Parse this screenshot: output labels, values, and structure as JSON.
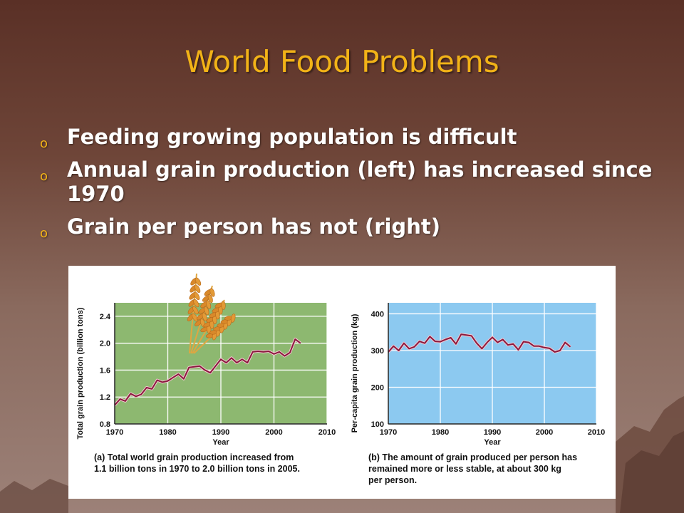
{
  "slide": {
    "title": "World Food Problems",
    "bullet_marker": "o",
    "bullets": [
      "Feeding growing population is difficult",
      "Annual grain production (left) has increased since 1970",
      "Grain per person has not (right)"
    ]
  },
  "colors": {
    "title": "#f2b317",
    "panel_a_bg": "#8db870",
    "panel_b_bg": "#8cc9f0",
    "line": "#8b1a3e"
  },
  "icons": [
    "wheat-icon"
  ],
  "chart_data": [
    {
      "type": "line",
      "ylabel": "Total grain production (billion tons)",
      "xlabel": "Year",
      "xlim": [
        1970,
        2010
      ],
      "ylim": [
        0.8,
        2.6
      ],
      "xticks": [
        1970,
        1980,
        1990,
        2000,
        2010
      ],
      "yticks": [
        0.8,
        1.2,
        1.6,
        2.0,
        2.4
      ],
      "ytick_labels": [
        "0.8",
        "1.2",
        "1.6",
        "2.0",
        "2.4"
      ],
      "grid": true,
      "caption": [
        "(a) Total world grain production increased from",
        "1.1 billion tons in 1970 to 2.0 billion tons in 2005."
      ],
      "series": [
        {
          "x": [
            1970,
            1971,
            1972,
            1973,
            1974,
            1975,
            1976,
            1977,
            1978,
            1979,
            1980,
            1981,
            1982,
            1983,
            1984,
            1985,
            1986,
            1987,
            1988,
            1989,
            1990,
            1991,
            1992,
            1993,
            1994,
            1995,
            1996,
            1997,
            1998,
            1999,
            2000,
            2001,
            2002,
            2003,
            2004,
            2005
          ],
          "y": [
            1.08,
            1.17,
            1.14,
            1.25,
            1.21,
            1.24,
            1.34,
            1.32,
            1.45,
            1.42,
            1.44,
            1.49,
            1.54,
            1.47,
            1.64,
            1.65,
            1.66,
            1.6,
            1.56,
            1.66,
            1.76,
            1.71,
            1.78,
            1.71,
            1.76,
            1.71,
            1.87,
            1.88,
            1.87,
            1.88,
            1.84,
            1.87,
            1.81,
            1.86,
            2.06,
            2.0
          ]
        }
      ]
    },
    {
      "type": "line",
      "ylabel": "Per-capita grain production (kg)",
      "xlabel": "Year",
      "xlim": [
        1970,
        2010
      ],
      "ylim": [
        100,
        430
      ],
      "xticks": [
        1970,
        1980,
        1990,
        2000,
        2010
      ],
      "yticks": [
        100,
        200,
        300,
        400
      ],
      "ytick_labels": [
        "100",
        "200",
        "300",
        "400"
      ],
      "grid": true,
      "caption": [
        "(b) The amount of grain produced per person has",
        "remained more or less stable, at about 300 kg",
        "per person."
      ],
      "series": [
        {
          "x": [
            1970,
            1971,
            1972,
            1973,
            1974,
            1975,
            1976,
            1977,
            1978,
            1979,
            1980,
            1981,
            1982,
            1983,
            1984,
            1985,
            1986,
            1987,
            1988,
            1989,
            1990,
            1991,
            1992,
            1993,
            1994,
            1995,
            1996,
            1997,
            1998,
            1999,
            2000,
            2001,
            2002,
            2003,
            2004,
            2005
          ],
          "y": [
            296,
            312,
            300,
            320,
            305,
            310,
            325,
            320,
            338,
            325,
            324,
            330,
            335,
            318,
            344,
            342,
            340,
            320,
            305,
            322,
            336,
            322,
            330,
            315,
            318,
            302,
            324,
            322,
            312,
            312,
            308,
            306,
            296,
            300,
            322,
            310
          ]
        }
      ]
    }
  ]
}
